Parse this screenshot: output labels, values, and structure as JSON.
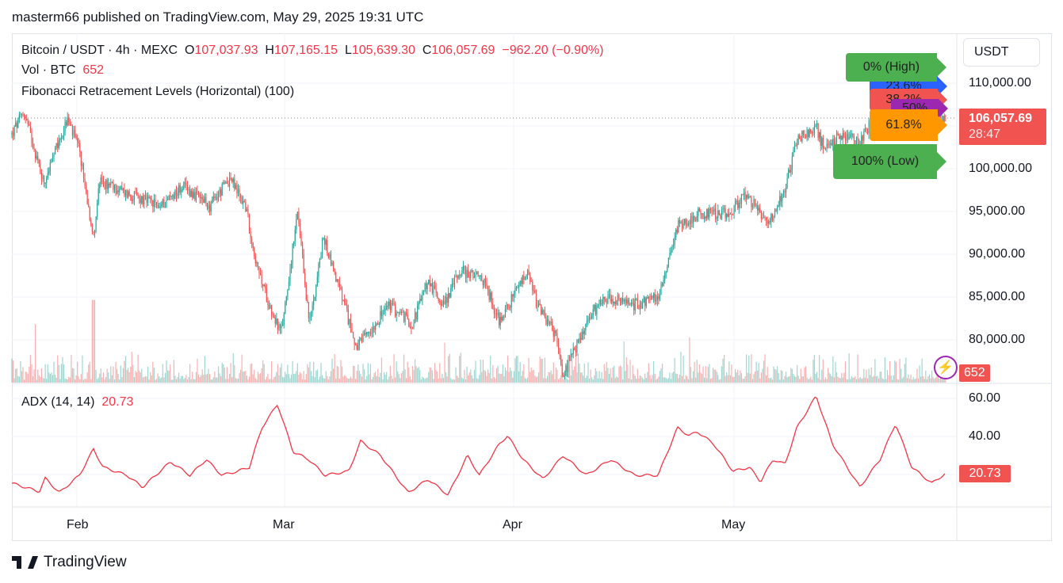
{
  "title": "masterm66 published on TradingView.com, May 29, 2025 19:31 UTC",
  "legend": {
    "symbol": "Bitcoin / USDT · 4h · MEXC",
    "o_label": "O",
    "o": "107,037.93",
    "h_label": "H",
    "h": "107,165.15",
    "l_label": "L",
    "l": "105,639.30",
    "c_label": "C",
    "c": "106,057.69",
    "change": "−962.20 (−0.90%)",
    "vol_label": "Vol · BTC",
    "vol": "652",
    "fib_label": "Fibonacci Retracement Levels (Horizontal) (100)"
  },
  "adx": {
    "label": "ADX (14, 14)",
    "value": "20.73"
  },
  "price_axis": {
    "unit": "USDT",
    "ticks": [
      "110,000.00",
      "100,000.00",
      "95,000.00",
      "90,000.00",
      "85,000.00",
      "80,000.00"
    ],
    "last_price": "106,057.69",
    "countdown": "28:47",
    "volume_tag": "652"
  },
  "adx_axis": {
    "ticks": [
      "60.00",
      "40.00"
    ],
    "value_tag": "20.73"
  },
  "time_axis": {
    "months": [
      "Feb",
      "Mar",
      "Apr",
      "May"
    ]
  },
  "fib_levels": [
    {
      "label": "0% (High)",
      "color": "#4caf50"
    },
    {
      "label": "23.6%",
      "color": "#2962ff"
    },
    {
      "label": "38.2%",
      "color": "#f05350"
    },
    {
      "label": "50%",
      "color": "#9c27b0"
    },
    {
      "label": "61.8%",
      "color": "#ff9800"
    },
    {
      "label": "100% (Low)",
      "color": "#4caf50"
    }
  ],
  "footer": {
    "brand": "TradingView"
  },
  "colors": {
    "up": "#26a69a",
    "down": "#ef5350",
    "adx": "#f23645"
  },
  "chart_data": {
    "type": "candlestick",
    "title": "Bitcoin / USDT · 4h · MEXC",
    "price_range": [
      75000,
      113000
    ],
    "price_waypoints_day_price": [
      [
        0,
        104000
      ],
      [
        1.6,
        106700
      ],
      [
        4.3,
        98400
      ],
      [
        7.5,
        105800
      ],
      [
        9.1,
        102100
      ],
      [
        11,
        92000
      ],
      [
        11.8,
        98400
      ],
      [
        14.4,
        97500
      ],
      [
        20,
        95600
      ],
      [
        23,
        98000
      ],
      [
        26.7,
        95600
      ],
      [
        29.4,
        98900
      ],
      [
        31.5,
        95600
      ],
      [
        33.1,
        88200
      ],
      [
        35.3,
        82700
      ],
      [
        36.3,
        80800
      ],
      [
        38.5,
        94700
      ],
      [
        40.1,
        81800
      ],
      [
        42,
        92000
      ],
      [
        44.3,
        85500
      ],
      [
        46.5,
        79000
      ],
      [
        50.8,
        84100
      ],
      [
        54,
        81800
      ],
      [
        56,
        86900
      ],
      [
        58.2,
        84100
      ],
      [
        60.4,
        88200
      ],
      [
        63.6,
        86900
      ],
      [
        65.7,
        82200
      ],
      [
        69.4,
        87800
      ],
      [
        71,
        83600
      ],
      [
        73.2,
        80800
      ],
      [
        74.3,
        75700
      ],
      [
        77.4,
        81800
      ],
      [
        79.6,
        85000
      ],
      [
        83.9,
        84100
      ],
      [
        87.1,
        85000
      ],
      [
        89.7,
        93300
      ],
      [
        92.4,
        94700
      ],
      [
        96.7,
        94700
      ],
      [
        98.8,
        97000
      ],
      [
        102,
        93800
      ],
      [
        104.2,
        97500
      ],
      [
        105.8,
        103500
      ],
      [
        108.4,
        104900
      ],
      [
        109.5,
        102100
      ],
      [
        111.7,
        104000
      ],
      [
        114.3,
        103000
      ],
      [
        118,
        109500
      ],
      [
        121.3,
        107600
      ],
      [
        125.9,
        106057.69
      ]
    ],
    "adx_waypoints_day_value": [
      [
        0,
        15.4
      ],
      [
        3.7,
        11
      ],
      [
        4.5,
        18
      ],
      [
        6.4,
        10.4
      ],
      [
        9.1,
        19.6
      ],
      [
        11,
        33.3
      ],
      [
        12.3,
        23.8
      ],
      [
        15.5,
        19.6
      ],
      [
        17.6,
        13.3
      ],
      [
        21.4,
        26.7
      ],
      [
        24,
        19.6
      ],
      [
        26.2,
        27.9
      ],
      [
        28.3,
        19.6
      ],
      [
        30.4,
        21.7
      ],
      [
        32,
        23.8
      ],
      [
        33.7,
        44.6
      ],
      [
        35.8,
        57
      ],
      [
        37.9,
        32
      ],
      [
        40,
        27.9
      ],
      [
        42.2,
        19.6
      ],
      [
        45.4,
        21.7
      ],
      [
        47,
        37.5
      ],
      [
        49.7,
        30
      ],
      [
        53.4,
        10.4
      ],
      [
        56.1,
        17.5
      ],
      [
        58.8,
        9.2
      ],
      [
        61.4,
        30
      ],
      [
        63,
        19.6
      ],
      [
        65.7,
        36
      ],
      [
        66.8,
        40.4
      ],
      [
        68.9,
        27.9
      ],
      [
        71.6,
        17.5
      ],
      [
        74.3,
        30
      ],
      [
        77.4,
        19.6
      ],
      [
        80.7,
        27.9
      ],
      [
        83.9,
        19.6
      ],
      [
        87.1,
        19.6
      ],
      [
        89.7,
        44.6
      ],
      [
        91.3,
        40.4
      ],
      [
        92.4,
        42.5
      ],
      [
        94.6,
        36
      ],
      [
        97.2,
        21.7
      ],
      [
        99.4,
        23.8
      ],
      [
        100.9,
        16.3
      ],
      [
        102.6,
        27.9
      ],
      [
        104.2,
        25.4
      ],
      [
        105.8,
        44.6
      ],
      [
        108.4,
        61.3
      ],
      [
        110.6,
        36
      ],
      [
        114.3,
        13.3
      ],
      [
        117,
        27.9
      ],
      [
        119.1,
        46.7
      ],
      [
        121.3,
        23.8
      ],
      [
        124,
        15.4
      ],
      [
        125.9,
        20.73
      ]
    ],
    "adx_range": [
      0,
      70
    ],
    "volume_max": 6000,
    "last_volume": 652,
    "x_start": "Jan 23",
    "x_end": "May 29",
    "bars_per_day": 6
  }
}
